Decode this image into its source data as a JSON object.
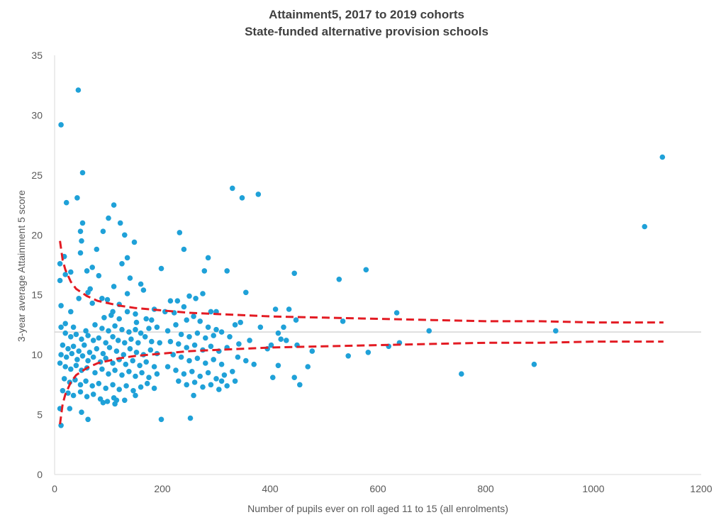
{
  "chart_data": {
    "type": "scatter",
    "title": "Attainment5, 2017 to 2019 cohorts",
    "subtitle": "State-funded alternative provision schools",
    "xlabel": "Number of pupils ever on roll aged 11 to 15 (all enrolments)",
    "ylabel": "3-year average Attainment 5 score",
    "xlim": [
      0,
      1200
    ],
    "ylim": [
      0,
      35
    ],
    "xticks": [
      "0",
      "200",
      "400",
      "600",
      "800",
      "1000",
      "1200"
    ],
    "yticks": [
      "0",
      "5",
      "10",
      "15",
      "20",
      "25",
      "30",
      "35"
    ],
    "grid": false,
    "colors": {
      "points": "#1fa1d8",
      "funnel": "#e31b23",
      "mean_line": "#c8c8c8",
      "axis": "#d9d9d9"
    },
    "mean": 11.9,
    "funnel_upper": {
      "x": [
        10,
        15,
        20,
        30,
        40,
        50,
        60,
        80,
        100,
        120,
        150,
        200,
        250,
        300,
        400,
        500,
        600,
        700,
        800,
        900,
        1000,
        1130
      ],
      "y": [
        19.5,
        17.9,
        17.1,
        16.1,
        15.5,
        15.2,
        14.9,
        14.5,
        14.3,
        14.1,
        13.9,
        13.7,
        13.5,
        13.4,
        13.2,
        13.1,
        13.0,
        12.9,
        12.8,
        12.8,
        12.7,
        12.7
      ]
    },
    "funnel_lower": {
      "x": [
        10,
        15,
        20,
        30,
        40,
        50,
        60,
        80,
        100,
        120,
        150,
        200,
        250,
        300,
        400,
        500,
        600,
        700,
        800,
        900,
        1000,
        1130
      ],
      "y": [
        4.2,
        5.9,
        6.7,
        7.7,
        8.3,
        8.6,
        8.9,
        9.3,
        9.5,
        9.7,
        9.9,
        10.1,
        10.3,
        10.4,
        10.6,
        10.7,
        10.8,
        10.9,
        11.0,
        11.0,
        11.1,
        11.1
      ]
    },
    "points": [
      [
        12,
        29.2
      ],
      [
        44,
        32.1
      ],
      [
        52,
        25.2
      ],
      [
        42,
        23.1
      ],
      [
        22,
        22.7
      ],
      [
        110,
        22.5
      ],
      [
        100,
        21.4
      ],
      [
        52,
        21.0
      ],
      [
        122,
        21.0
      ],
      [
        48,
        20.3
      ],
      [
        90,
        20.3
      ],
      [
        130,
        20.0
      ],
      [
        50,
        19.5
      ],
      [
        148,
        19.4
      ],
      [
        78,
        18.8
      ],
      [
        18,
        18.2
      ],
      [
        135,
        18.1
      ],
      [
        48,
        18.5
      ],
      [
        10,
        17.6
      ],
      [
        60,
        17.0
      ],
      [
        30,
        16.9
      ],
      [
        20,
        16.7
      ],
      [
        70,
        17.3
      ],
      [
        82,
        16.6
      ],
      [
        125,
        17.6
      ],
      [
        140,
        16.4
      ],
      [
        160,
        15.9
      ],
      [
        110,
        15.7
      ],
      [
        66,
        15.5
      ],
      [
        62,
        15.2
      ],
      [
        10,
        16.2
      ],
      [
        135,
        15.1
      ],
      [
        88,
        14.7
      ],
      [
        98,
        14.6
      ],
      [
        165,
        15.4
      ],
      [
        45,
        14.7
      ],
      [
        70,
        14.3
      ],
      [
        12,
        14.1
      ],
      [
        120,
        14.2
      ],
      [
        185,
        13.8
      ],
      [
        108,
        13.6
      ],
      [
        135,
        13.6
      ],
      [
        150,
        13.4
      ],
      [
        30,
        13.6
      ],
      [
        92,
        13.1
      ],
      [
        105,
        13.3
      ],
      [
        120,
        13.0
      ],
      [
        152,
        12.7
      ],
      [
        170,
        13.0
      ],
      [
        180,
        12.9
      ],
      [
        35,
        12.3
      ],
      [
        20,
        12.6
      ],
      [
        12,
        12.3
      ],
      [
        75,
        12.5
      ],
      [
        58,
        12.0
      ],
      [
        88,
        12.2
      ],
      [
        100,
        12.0
      ],
      [
        112,
        12.4
      ],
      [
        125,
        12.1
      ],
      [
        138,
        11.9
      ],
      [
        150,
        12.1
      ],
      [
        160,
        11.8
      ],
      [
        175,
        12.2
      ],
      [
        190,
        12.3
      ],
      [
        20,
        11.8
      ],
      [
        30,
        11.5
      ],
      [
        40,
        11.7
      ],
      [
        50,
        11.3
      ],
      [
        62,
        11.6
      ],
      [
        72,
        11.2
      ],
      [
        82,
        11.4
      ],
      [
        95,
        11.0
      ],
      [
        108,
        11.5
      ],
      [
        118,
        11.2
      ],
      [
        130,
        11.0
      ],
      [
        142,
        11.3
      ],
      [
        155,
        11.0
      ],
      [
        168,
        11.5
      ],
      [
        180,
        11.1
      ],
      [
        195,
        11.0
      ],
      [
        15,
        10.8
      ],
      [
        25,
        10.5
      ],
      [
        35,
        10.7
      ],
      [
        45,
        10.3
      ],
      [
        55,
        10.8
      ],
      [
        65,
        10.2
      ],
      [
        78,
        10.5
      ],
      [
        90,
        10.1
      ],
      [
        102,
        10.6
      ],
      [
        115,
        10.3
      ],
      [
        128,
        10.0
      ],
      [
        140,
        10.5
      ],
      [
        152,
        10.2
      ],
      [
        165,
        10.0
      ],
      [
        178,
        10.4
      ],
      [
        190,
        10.1
      ],
      [
        12,
        10.0
      ],
      [
        22,
        9.8
      ],
      [
        32,
        10.1
      ],
      [
        42,
        9.6
      ],
      [
        52,
        9.9
      ],
      [
        62,
        9.5
      ],
      [
        72,
        9.8
      ],
      [
        85,
        9.4
      ],
      [
        95,
        9.7
      ],
      [
        108,
        9.3
      ],
      [
        120,
        9.6
      ],
      [
        132,
        9.2
      ],
      [
        145,
        9.5
      ],
      [
        158,
        9.1
      ],
      [
        170,
        9.4
      ],
      [
        185,
        9.0
      ],
      [
        10,
        9.3
      ],
      [
        20,
        9.0
      ],
      [
        30,
        8.8
      ],
      [
        40,
        9.1
      ],
      [
        50,
        8.7
      ],
      [
        60,
        8.9
      ],
      [
        75,
        8.5
      ],
      [
        88,
        8.8
      ],
      [
        100,
        8.4
      ],
      [
        112,
        8.7
      ],
      [
        125,
        8.3
      ],
      [
        138,
        8.6
      ],
      [
        150,
        8.2
      ],
      [
        162,
        8.5
      ],
      [
        175,
        8.1
      ],
      [
        190,
        8.4
      ],
      [
        18,
        8.0
      ],
      [
        28,
        7.7
      ],
      [
        38,
        7.9
      ],
      [
        48,
        7.5
      ],
      [
        58,
        7.8
      ],
      [
        70,
        7.4
      ],
      [
        82,
        7.6
      ],
      [
        95,
        7.2
      ],
      [
        108,
        7.5
      ],
      [
        120,
        7.1
      ],
      [
        133,
        7.4
      ],
      [
        146,
        7.0
      ],
      [
        160,
        7.3
      ],
      [
        172,
        7.6
      ],
      [
        185,
        7.2
      ],
      [
        15,
        7.0
      ],
      [
        25,
        6.8
      ],
      [
        35,
        6.6
      ],
      [
        48,
        6.9
      ],
      [
        60,
        6.5
      ],
      [
        72,
        6.7
      ],
      [
        85,
        6.3
      ],
      [
        98,
        6.1
      ],
      [
        110,
        6.4
      ],
      [
        130,
        6.2
      ],
      [
        150,
        6.6
      ],
      [
        112,
        5.9
      ],
      [
        90,
        6.0
      ],
      [
        28,
        5.5
      ],
      [
        10,
        5.5
      ],
      [
        50,
        5.2
      ],
      [
        62,
        4.6
      ],
      [
        12,
        4.1
      ],
      [
        198,
        4.6
      ],
      [
        115,
        6.2
      ],
      [
        240,
        18.8
      ],
      [
        232,
        20.2
      ],
      [
        198,
        17.2
      ],
      [
        215,
        14.5
      ],
      [
        228,
        14.5
      ],
      [
        240,
        14.0
      ],
      [
        222,
        13.5
      ],
      [
        250,
        14.9
      ],
      [
        262,
        14.7
      ],
      [
        275,
        15.1
      ],
      [
        290,
        13.6
      ],
      [
        205,
        13.6
      ],
      [
        245,
        12.9
      ],
      [
        258,
        13.2
      ],
      [
        270,
        12.8
      ],
      [
        225,
        12.5
      ],
      [
        285,
        12.3
      ],
      [
        300,
        12.1
      ],
      [
        210,
        12.0
      ],
      [
        235,
        11.7
      ],
      [
        250,
        11.5
      ],
      [
        265,
        11.8
      ],
      [
        280,
        11.4
      ],
      [
        295,
        11.6
      ],
      [
        310,
        11.9
      ],
      [
        215,
        11.1
      ],
      [
        230,
        10.9
      ],
      [
        245,
        10.6
      ],
      [
        260,
        10.8
      ],
      [
        275,
        10.4
      ],
      [
        290,
        10.7
      ],
      [
        305,
        10.3
      ],
      [
        320,
        10.6
      ],
      [
        220,
        10.0
      ],
      [
        235,
        9.8
      ],
      [
        250,
        9.5
      ],
      [
        265,
        9.7
      ],
      [
        280,
        9.3
      ],
      [
        295,
        9.6
      ],
      [
        310,
        9.2
      ],
      [
        210,
        9.0
      ],
      [
        225,
        8.7
      ],
      [
        240,
        8.4
      ],
      [
        255,
        8.6
      ],
      [
        270,
        8.2
      ],
      [
        285,
        8.5
      ],
      [
        300,
        8.0
      ],
      [
        315,
        8.3
      ],
      [
        230,
        7.8
      ],
      [
        245,
        7.5
      ],
      [
        260,
        7.7
      ],
      [
        275,
        7.3
      ],
      [
        290,
        7.5
      ],
      [
        305,
        7.1
      ],
      [
        320,
        7.4
      ],
      [
        258,
        6.6
      ],
      [
        252,
        4.7
      ],
      [
        285,
        18.1
      ],
      [
        278,
        17.0
      ],
      [
        300,
        13.6
      ],
      [
        320,
        17.0
      ],
      [
        330,
        23.9
      ],
      [
        348,
        23.1
      ],
      [
        378,
        23.4
      ],
      [
        355,
        15.2
      ],
      [
        345,
        12.7
      ],
      [
        335,
        12.5
      ],
      [
        382,
        12.3
      ],
      [
        325,
        11.5
      ],
      [
        362,
        11.2
      ],
      [
        342,
        10.9
      ],
      [
        402,
        10.8
      ],
      [
        410,
        13.8
      ],
      [
        435,
        13.8
      ],
      [
        445,
        16.8
      ],
      [
        415,
        11.8
      ],
      [
        420,
        11.3
      ],
      [
        448,
        12.9
      ],
      [
        425,
        12.3
      ],
      [
        430,
        11.2
      ],
      [
        450,
        10.8
      ],
      [
        395,
        10.5
      ],
      [
        340,
        9.8
      ],
      [
        355,
        9.5
      ],
      [
        370,
        9.2
      ],
      [
        415,
        9.1
      ],
      [
        405,
        8.1
      ],
      [
        445,
        8.1
      ],
      [
        455,
        7.5
      ],
      [
        470,
        9.0
      ],
      [
        478,
        10.3
      ],
      [
        330,
        8.6
      ],
      [
        310,
        7.8
      ],
      [
        335,
        7.8
      ],
      [
        528,
        16.3
      ],
      [
        535,
        12.8
      ],
      [
        578,
        17.1
      ],
      [
        582,
        10.2
      ],
      [
        545,
        9.9
      ],
      [
        620,
        10.7
      ],
      [
        635,
        13.5
      ],
      [
        640,
        11.0
      ],
      [
        695,
        12.0
      ],
      [
        755,
        8.4
      ],
      [
        890,
        9.2
      ],
      [
        930,
        12.0
      ],
      [
        1095,
        20.7
      ],
      [
        1128,
        26.5
      ]
    ]
  }
}
